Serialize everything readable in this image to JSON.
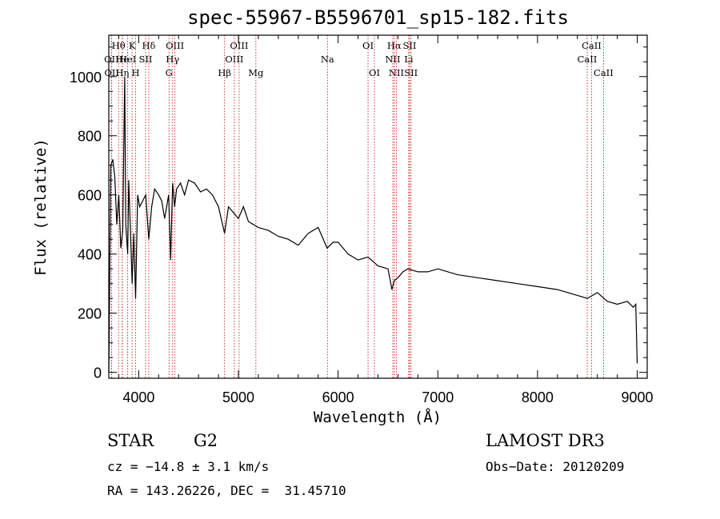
{
  "chart_data": {
    "type": "line",
    "title": "spec-55967-B5596701_sp15-182.fits",
    "xlabel": "Wavelength (Å)",
    "ylabel": "Flux (relative)",
    "xlim": [
      3700,
      9100
    ],
    "ylim": [
      -20,
      1140
    ],
    "xticks": [
      4000,
      5000,
      6000,
      7000,
      8000,
      9000
    ],
    "yticks": [
      0,
      200,
      400,
      600,
      800,
      1000
    ],
    "series": [
      {
        "name": "spectrum",
        "x": [
          3700,
          3720,
          3740,
          3760,
          3780,
          3800,
          3820,
          3840,
          3860,
          3870,
          3889,
          3900,
          3920,
          3934,
          3950,
          3969,
          3990,
          4010,
          4040,
          4070,
          4101,
          4130,
          4160,
          4200,
          4230,
          4260,
          4300,
          4320,
          4340,
          4360,
          4380,
          4420,
          4460,
          4500,
          4560,
          4620,
          4680,
          4740,
          4800,
          4861,
          4900,
          4950,
          5000,
          5050,
          5100,
          5150,
          5200,
          5300,
          5400,
          5500,
          5600,
          5700,
          5800,
          5890,
          5950,
          6000,
          6100,
          6200,
          6300,
          6400,
          6500,
          6540,
          6563,
          6600,
          6650,
          6700,
          6800,
          6900,
          7000,
          7200,
          7400,
          7600,
          7800,
          8000,
          8200,
          8400,
          8500,
          8600,
          8700,
          8800,
          8900,
          8960,
          8985,
          9000
        ],
        "values": [
          0,
          700,
          720,
          660,
          500,
          600,
          420,
          480,
          1000,
          500,
          400,
          650,
          450,
          300,
          470,
          250,
          600,
          560,
          580,
          600,
          450,
          560,
          620,
          600,
          580,
          520,
          600,
          380,
          640,
          560,
          620,
          640,
          600,
          650,
          640,
          610,
          620,
          600,
          560,
          470,
          560,
          540,
          520,
          560,
          510,
          500,
          490,
          480,
          460,
          450,
          430,
          470,
          490,
          420,
          440,
          440,
          400,
          380,
          390,
          360,
          350,
          280,
          310,
          320,
          340,
          350,
          340,
          340,
          350,
          330,
          320,
          310,
          300,
          290,
          280,
          260,
          250,
          270,
          240,
          230,
          240,
          220,
          230,
          30
        ]
      }
    ],
    "lines": [
      {
        "name": "Hθ",
        "x": 3798,
        "row": 0
      },
      {
        "name": "OII",
        "x": 3727,
        "row": 1
      },
      {
        "name": "OII",
        "x": 3729,
        "row": 2
      },
      {
        "name": "He",
        "x": 3835,
        "row": 1
      },
      {
        "name": "Hη",
        "x": 3835,
        "row": 2
      },
      {
        "name": "K",
        "x": 3934,
        "row": 0
      },
      {
        "name": "HeI",
        "x": 3889,
        "row": 1
      },
      {
        "name": "H",
        "x": 3969,
        "row": 2
      },
      {
        "name": "SII",
        "x": 4069,
        "row": 1
      },
      {
        "name": "Hδ",
        "x": 4101,
        "row": 0
      },
      {
        "name": "OIII",
        "x": 4363,
        "row": 0
      },
      {
        "name": "Hγ",
        "x": 4340,
        "row": 1
      },
      {
        "name": "G",
        "x": 4304,
        "row": 2
      },
      {
        "name": "Hβ",
        "x": 4861,
        "row": 2
      },
      {
        "name": "OIII",
        "x": 5007,
        "row": 0
      },
      {
        "name": "OIII",
        "x": 4959,
        "row": 1
      },
      {
        "name": "Mg",
        "x": 5175,
        "row": 2
      },
      {
        "name": "Na",
        "x": 5893,
        "row": 1
      },
      {
        "name": "OI",
        "x": 6300,
        "row": 0
      },
      {
        "name": "OI",
        "x": 6364,
        "row": 2
      },
      {
        "name": "Hα",
        "x": 6563,
        "row": 0
      },
      {
        "name": "SII",
        "x": 6717,
        "row": 0
      },
      {
        "name": "NII",
        "x": 6548,
        "row": 1
      },
      {
        "name": "Li",
        "x": 6708,
        "row": 1
      },
      {
        "name": "NII",
        "x": 6584,
        "row": 2
      },
      {
        "name": "SII",
        "x": 6731,
        "row": 2
      },
      {
        "name": "CaII",
        "x": 8542,
        "row": 0
      },
      {
        "name": "CaII",
        "x": 8498,
        "row": 1
      },
      {
        "name": "CaII",
        "x": 8662,
        "row": 2
      }
    ],
    "line_color": "#cc2222"
  },
  "footer": {
    "object_class": "STAR",
    "subclass": "G2",
    "survey": "LAMOST DR3",
    "cz": "cz = −14.8 ± 3.1 km/s",
    "obs_date": "Obs−Date: 20120209",
    "radec": "RA = 143.26226, DEC =  31.45710"
  }
}
